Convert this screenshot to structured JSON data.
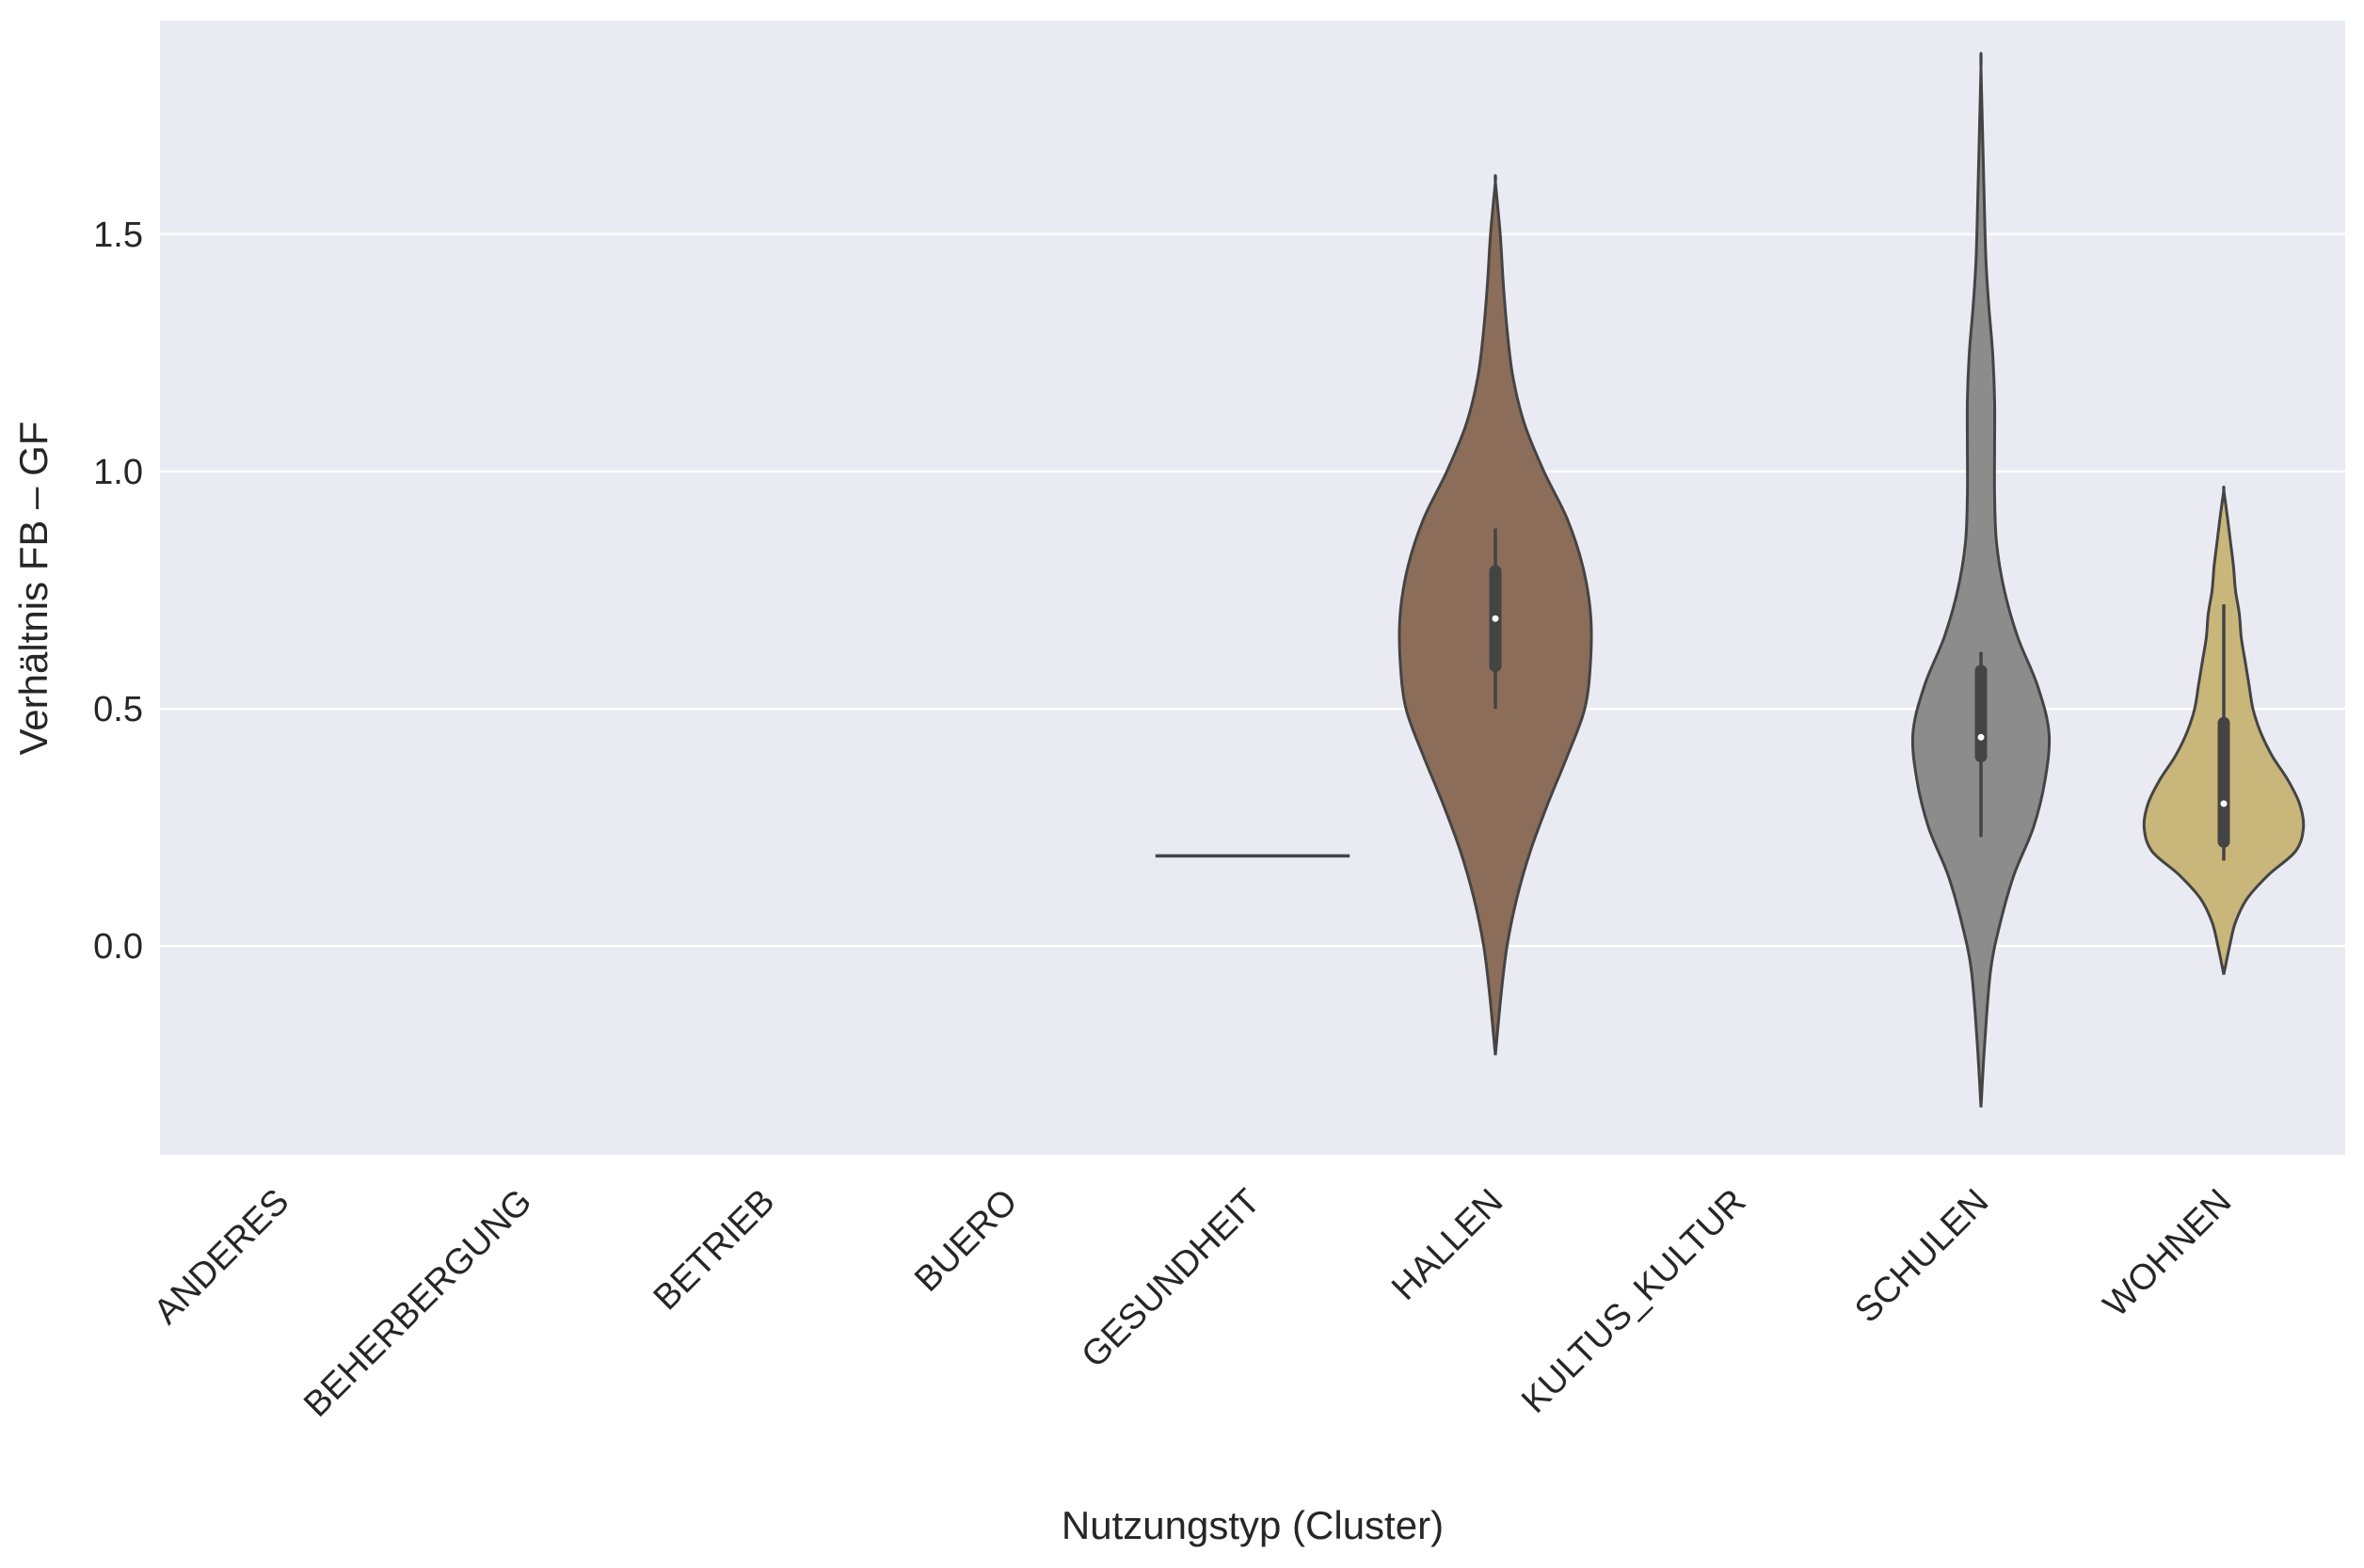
{
  "chart_data": {
    "type": "violin",
    "xlabel": "Nutzungstyp (Cluster)",
    "ylabel": "Verhältnis FB – GF",
    "ylim": [
      -0.44,
      1.95
    ],
    "yticks": [
      0.0,
      0.5,
      1.0,
      1.5
    ],
    "ytick_labels": [
      "0.0",
      "0.5",
      "1.0",
      "1.5"
    ],
    "grid": true,
    "categories": [
      "ANDERES",
      "BEHERBERGUNG",
      "BETRIEB",
      "BUERO",
      "GESUNDHEIT",
      "HALLEN",
      "KULTUS_KULTUR",
      "SCHULEN",
      "WOHNEN"
    ],
    "series": [
      {
        "category": "ANDERES",
        "present": false
      },
      {
        "category": "BEHERBERGUNG",
        "present": false
      },
      {
        "category": "BETRIEB",
        "present": false
      },
      {
        "category": "BUERO",
        "present": false
      },
      {
        "category": "GESUNDHEIT",
        "present": true,
        "single_value": 0.19,
        "color": "#444444"
      },
      {
        "category": "HALLEN",
        "present": true,
        "color": "#8c6d59",
        "density": [
          [
            -0.23,
            0.0
          ],
          [
            -0.1,
            0.03
          ],
          [
            0.0,
            0.06
          ],
          [
            0.1,
            0.11
          ],
          [
            0.2,
            0.18
          ],
          [
            0.3,
            0.27
          ],
          [
            0.4,
            0.37
          ],
          [
            0.5,
            0.46
          ],
          [
            0.6,
            0.49
          ],
          [
            0.7,
            0.49
          ],
          [
            0.8,
            0.45
          ],
          [
            0.9,
            0.37
          ],
          [
            1.0,
            0.25
          ],
          [
            1.1,
            0.15
          ],
          [
            1.2,
            0.09
          ],
          [
            1.3,
            0.06
          ],
          [
            1.4,
            0.04
          ],
          [
            1.5,
            0.025
          ],
          [
            1.61,
            0.0
          ]
        ],
        "box": {
          "q1": 0.59,
          "median": 0.69,
          "q3": 0.79,
          "whisker_low": 0.5,
          "whisker_high": 0.88
        }
      },
      {
        "category": "KULTUS_KULTUR",
        "present": false
      },
      {
        "category": "SCHULEN",
        "present": true,
        "color": "#8c8c8c",
        "density": [
          [
            -0.34,
            0.0
          ],
          [
            -0.2,
            0.02
          ],
          [
            -0.05,
            0.05
          ],
          [
            0.05,
            0.1
          ],
          [
            0.15,
            0.17
          ],
          [
            0.25,
            0.27
          ],
          [
            0.35,
            0.33
          ],
          [
            0.45,
            0.35
          ],
          [
            0.55,
            0.29
          ],
          [
            0.65,
            0.19
          ],
          [
            0.75,
            0.12
          ],
          [
            0.85,
            0.08
          ],
          [
            0.95,
            0.07
          ],
          [
            1.05,
            0.07
          ],
          [
            1.15,
            0.07
          ],
          [
            1.25,
            0.06
          ],
          [
            1.35,
            0.04
          ],
          [
            1.45,
            0.025
          ],
          [
            1.6,
            0.015
          ],
          [
            1.85,
            0.0
          ]
        ],
        "box": {
          "q1": 0.4,
          "median": 0.44,
          "q3": 0.58,
          "whisker_low": 0.23,
          "whisker_high": 0.62
        }
      },
      {
        "category": "WOHNEN",
        "present": true,
        "color": "#c8b67a",
        "density": [
          [
            -0.06,
            0.0
          ],
          [
            0.0,
            0.03
          ],
          [
            0.05,
            0.06
          ],
          [
            0.1,
            0.12
          ],
          [
            0.15,
            0.23
          ],
          [
            0.2,
            0.37
          ],
          [
            0.25,
            0.41
          ],
          [
            0.3,
            0.39
          ],
          [
            0.35,
            0.33
          ],
          [
            0.4,
            0.25
          ],
          [
            0.45,
            0.19
          ],
          [
            0.5,
            0.15
          ],
          [
            0.55,
            0.13
          ],
          [
            0.6,
            0.11
          ],
          [
            0.65,
            0.09
          ],
          [
            0.7,
            0.08
          ],
          [
            0.75,
            0.06
          ],
          [
            0.8,
            0.05
          ],
          [
            0.85,
            0.035
          ],
          [
            0.9,
            0.02
          ],
          [
            0.96,
            0.0
          ]
        ],
        "box": {
          "q1": 0.22,
          "median": 0.3,
          "q3": 0.47,
          "whisker_low": 0.18,
          "whisker_high": 0.72
        }
      }
    ]
  }
}
